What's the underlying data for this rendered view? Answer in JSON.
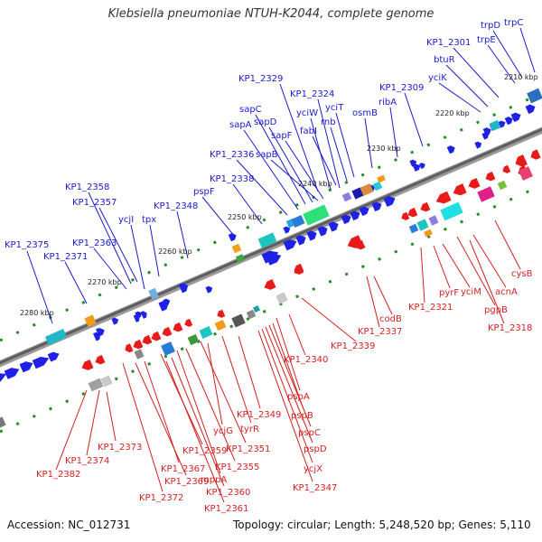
{
  "title": "Klebsiella pneumoniae NTUH-K2044, complete genome",
  "footer": {
    "accession": "Accession: NC_012731",
    "summary": "Topology: circular; Length: 5,248,520 bp; Genes: 5,110"
  },
  "colors": {
    "forward_arrow": "#1f22e6",
    "reverse_arrow": "#e81b1b",
    "forward_label": "#1a1acc",
    "reverse_label": "#d42020",
    "backbone": "#7a7a7a",
    "tick": "#2a8a2a"
  },
  "scale_labels": [
    "2280 kbp",
    "2270 kbp",
    "2260 kbp",
    "2250 kbp",
    "2240 kbp",
    "2230 kbp",
    "2220 kbp",
    "2210 kbp"
  ],
  "forward_genes": [
    "KP1_2375",
    "KP1_2371",
    "KP1_2363",
    "KP1_2358",
    "KP1_2357",
    "ycjI",
    "tpx",
    "KP1_2348",
    "pspF",
    "KP1_2338",
    "KP1_2336",
    "sapA",
    "sapC",
    "sapD",
    "sapB",
    "sapF",
    "KP1_2329",
    "KP1_2324",
    "yciW",
    "fabI",
    "yciT",
    "rnb",
    "osmB",
    "ribA",
    "KP1_2309",
    "yciK",
    "btuR",
    "KP1_2301",
    "trpE",
    "trpD",
    "trpC"
  ],
  "reverse_genes": [
    "KP1_2382",
    "KP1_2374",
    "KP1_2373",
    "KP1_2372",
    "KP1_2369",
    "KP1_2367",
    "KP1_2359",
    "KP1_2360",
    "KP1_2361",
    "mppA",
    "KP1_2355",
    "KP1_2351",
    "ycjG",
    "tyrR",
    "KP1_2349",
    "KP1_2347",
    "ycjX",
    "pspD",
    "pspC",
    "pspB",
    "pspA",
    "KP1_2340",
    "KP1_2339",
    "KP1_2337",
    "codB",
    "KP1_2321",
    "pyrF",
    "yciM",
    "pgpB",
    "acnA",
    "KP1_2318",
    "cysB"
  ]
}
